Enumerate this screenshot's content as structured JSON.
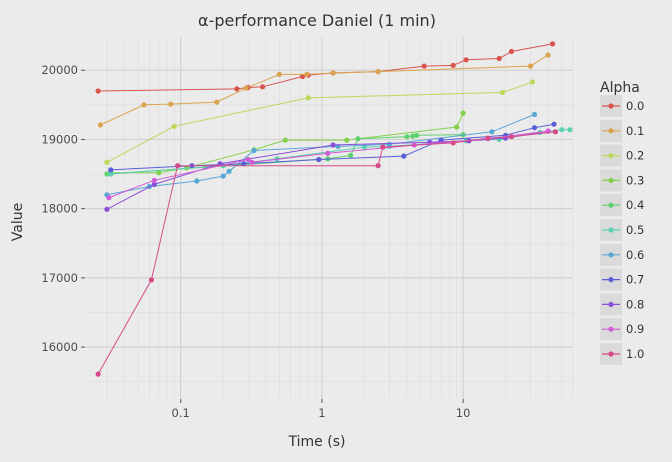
{
  "chart_data": {
    "type": "line",
    "title": "α-performance Daniel (1 min)",
    "xlabel": "Time (s)",
    "ylabel": "Value",
    "x_scale": "log",
    "xlim": [
      0.021,
      60
    ],
    "ylim": [
      15250,
      20480
    ],
    "x_ticks": [
      0.1,
      1,
      10
    ],
    "x_tick_labels": [
      "0.1",
      "1",
      "10"
    ],
    "y_ticks": [
      16000,
      17000,
      18000,
      19000,
      20000
    ],
    "y_tick_labels": [
      "16000",
      "17000",
      "18000",
      "19000",
      "20000"
    ],
    "grid": true,
    "legend": {
      "title": "Alpha",
      "placement": "right"
    },
    "series": [
      {
        "name": "0.0",
        "color": "#d9534f",
        "points": [
          [
            0.026,
            19700
          ],
          [
            0.25,
            19730
          ],
          [
            0.3,
            19750
          ],
          [
            0.38,
            19760
          ],
          [
            0.73,
            19910
          ],
          [
            0.8,
            19930
          ],
          [
            1.2,
            19960
          ],
          [
            2.5,
            19980
          ],
          [
            5.3,
            20060
          ],
          [
            8.5,
            20070
          ],
          [
            10.5,
            20150
          ],
          [
            18,
            20170
          ],
          [
            22,
            20270
          ],
          [
            43,
            20380
          ]
        ]
      },
      {
        "name": "0.1",
        "color": "#d9a44d",
        "points": [
          [
            0.027,
            19210
          ],
          [
            0.055,
            19500
          ],
          [
            0.085,
            19510
          ],
          [
            0.18,
            19540
          ],
          [
            0.29,
            19740
          ],
          [
            0.5,
            19940
          ],
          [
            0.78,
            19940
          ],
          [
            1.2,
            19960
          ],
          [
            2.5,
            19980
          ],
          [
            30,
            20060
          ],
          [
            40,
            20220
          ]
        ]
      },
      {
        "name": "0.2",
        "color": "#bcd85a",
        "points": [
          [
            0.03,
            18670
          ],
          [
            0.09,
            19190
          ],
          [
            0.8,
            19600
          ],
          [
            19,
            19680
          ],
          [
            31,
            19830
          ]
        ]
      },
      {
        "name": "0.3",
        "color": "#82d04a",
        "points": [
          [
            0.032,
            18520
          ],
          [
            0.07,
            18520
          ],
          [
            0.11,
            18590
          ],
          [
            0.33,
            18850
          ],
          [
            0.55,
            18990
          ],
          [
            1.5,
            18990
          ],
          [
            9,
            19180
          ],
          [
            10,
            19380
          ]
        ]
      },
      {
        "name": "0.4",
        "color": "#5dd16e",
        "points": [
          [
            0.03,
            18500
          ],
          [
            0.15,
            18600
          ],
          [
            1.1,
            18720
          ],
          [
            1.6,
            18770
          ],
          [
            1.8,
            19010
          ],
          [
            4,
            19040
          ],
          [
            4.4,
            19050
          ],
          [
            4.7,
            19060
          ],
          [
            10,
            19070
          ]
        ]
      },
      {
        "name": "0.5",
        "color": "#5ad1b1",
        "points": [
          [
            0.032,
            18500
          ],
          [
            0.2,
            18620
          ],
          [
            0.48,
            18720
          ],
          [
            2,
            18890
          ],
          [
            3,
            18900
          ],
          [
            10.5,
            18980
          ],
          [
            18,
            19000
          ],
          [
            35,
            19100
          ],
          [
            50,
            19140
          ],
          [
            57,
            19140
          ]
        ]
      },
      {
        "name": "0.6",
        "color": "#58a8d6",
        "points": [
          [
            0.03,
            18200
          ],
          [
            0.06,
            18320
          ],
          [
            0.13,
            18400
          ],
          [
            0.2,
            18470
          ],
          [
            0.22,
            18540
          ],
          [
            0.33,
            18840
          ],
          [
            1.3,
            18900
          ],
          [
            3,
            18930
          ],
          [
            16,
            19110
          ],
          [
            32,
            19360
          ]
        ]
      },
      {
        "name": "0.7",
        "color": "#5a5ed8",
        "points": [
          [
            0.032,
            18560
          ],
          [
            0.12,
            18620
          ],
          [
            0.28,
            18650
          ],
          [
            0.95,
            18710
          ],
          [
            3.8,
            18760
          ],
          [
            7,
            18990
          ],
          [
            20,
            19060
          ],
          [
            32,
            19170
          ],
          [
            44,
            19220
          ]
        ]
      },
      {
        "name": "0.8",
        "color": "#8a4fd9",
        "points": [
          [
            0.03,
            17990
          ],
          [
            0.065,
            18350
          ],
          [
            0.19,
            18650
          ],
          [
            1.2,
            18920
          ],
          [
            5.8,
            18960
          ],
          [
            11,
            18980
          ],
          [
            20,
            19020
          ],
          [
            40,
            19120
          ]
        ]
      },
      {
        "name": "0.9",
        "color": "#d25bd6",
        "points": [
          [
            0.031,
            18160
          ],
          [
            0.065,
            18410
          ],
          [
            0.3,
            18710
          ],
          [
            0.32,
            18670
          ],
          [
            1.1,
            18800
          ],
          [
            4.5,
            18920
          ],
          [
            15,
            19010
          ],
          [
            40,
            19120
          ]
        ]
      },
      {
        "name": "1.0",
        "color": "#d64a8a",
        "points": [
          [
            0.026,
            15610
          ],
          [
            0.062,
            16970
          ],
          [
            0.095,
            18620
          ],
          [
            2.5,
            18620
          ],
          [
            2.7,
            18890
          ],
          [
            8.5,
            18950
          ],
          [
            15,
            19020
          ],
          [
            22,
            19040
          ],
          [
            45,
            19110
          ]
        ]
      }
    ]
  }
}
